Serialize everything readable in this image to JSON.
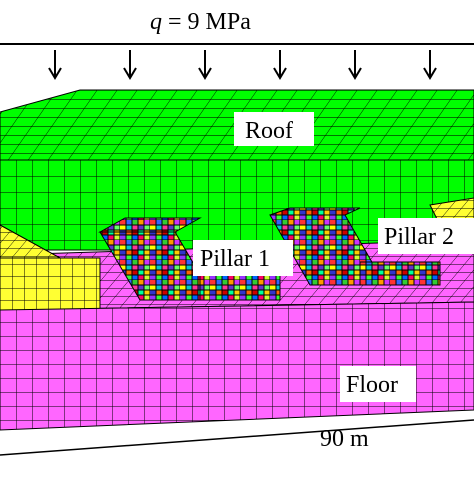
{
  "load": {
    "symbol": "q",
    "equals": "= 9 MPa",
    "arrow_count": 6,
    "arrow_icon": "down-arrow-icon"
  },
  "labels": {
    "roof": "Roof",
    "pillar_1": "Pillar 1",
    "pillar_2": "Pillar 2",
    "floor": "Floor"
  },
  "dimension": {
    "text": "90 m"
  },
  "colors": {
    "roof": "#00ff00",
    "floor": "#ff66ff",
    "coal_seam": "#ffff33",
    "mesh_line": "#000000"
  }
}
